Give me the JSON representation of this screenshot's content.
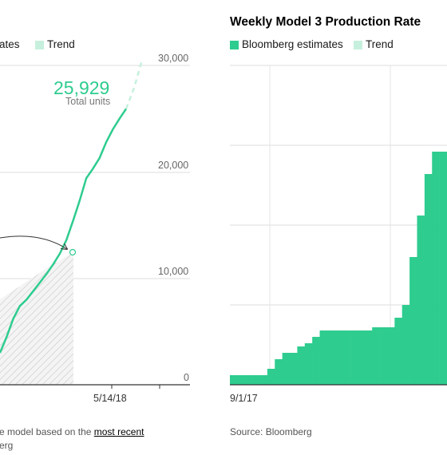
{
  "colors": {
    "accent": "#2ecc8f",
    "trend": "#c6f0dd",
    "grid": "#dddddd",
    "axis": "#333333"
  },
  "left_panel": {
    "legend": {
      "estimates_label": "ates",
      "trend_label": "Trend"
    },
    "callout": {
      "value": "25,929",
      "label": "Total units"
    },
    "footer": {
      "text_before": "e model based on the ",
      "link": "most recent",
      "source_fragment": "erg"
    }
  },
  "right_panel": {
    "title": "Weekly Model 3 Production Rate",
    "legend": {
      "estimates_label": "Bloomberg estimates",
      "trend_label": "Trend"
    },
    "footer": {
      "source": "Source: Bloomberg"
    }
  },
  "chart_data": [
    {
      "type": "line",
      "title": "",
      "x_tick_labels": [
        "5/14/18"
      ],
      "y_tick_labels": [
        "0",
        "10,000",
        "20,000",
        "30,000"
      ],
      "ylim": [
        0,
        30000
      ],
      "grid": true,
      "series": [
        {
          "name": "ates",
          "style": "solid",
          "y": [
            3000,
            4500,
            6200,
            7400,
            8000,
            8800,
            9600,
            10400,
            11300,
            12300,
            13600,
            15400,
            17300,
            19400,
            20300,
            21300,
            22800,
            24000,
            25000,
            25929
          ]
        },
        {
          "name": "Trend",
          "style": "dashed",
          "y": [
            25929,
            27900,
            30500
          ]
        }
      ],
      "annotation": {
        "value": "25,929",
        "label": "Total units"
      }
    },
    {
      "type": "bar",
      "title": "Weekly Model 3 Production Rate",
      "x_tick_labels": [
        "9/1/17"
      ],
      "grid": true,
      "series": [
        {
          "name": "Bloomberg estimates",
          "values": [
            3,
            3,
            3,
            3,
            3,
            5,
            8,
            10,
            10,
            12,
            13,
            15,
            17,
            17,
            17,
            17,
            17,
            17,
            17,
            18,
            18,
            18,
            21,
            25,
            40,
            53,
            66,
            73,
            73
          ]
        }
      ],
      "ylim": [
        0,
        100
      ]
    }
  ]
}
